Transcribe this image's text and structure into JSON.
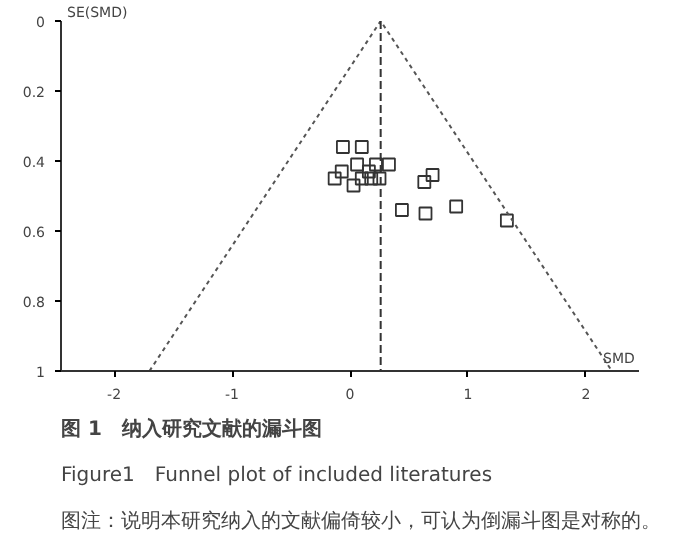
{
  "chart_data": {
    "type": "scatter",
    "title": "图 1　纳入研究文献的漏斗图",
    "subtitle": "Figure1　Funnel plot of included literatures",
    "annotations": [
      "图注：说明本研究纳入的文献偏倚较小，可认为倒漏斗图是对称的。"
    ],
    "xlabel": "SMD",
    "ylabel": "SE(SMD)",
    "series": [
      {
        "color": "#333333",
        "marker": "square",
        "x": [
          -0.06,
          0.1,
          0.06,
          0.22,
          0.33,
          -0.07,
          0.16,
          -0.13,
          0.1,
          0.18,
          0.25,
          0.03,
          0.7,
          0.63,
          0.44,
          0.64,
          0.9,
          1.33
        ],
        "values": [
          0.36,
          0.36,
          0.41,
          0.41,
          0.41,
          0.43,
          0.43,
          0.45,
          0.45,
          0.45,
          0.45,
          0.47,
          0.44,
          0.46,
          0.54,
          0.55,
          0.53,
          0.57
        ]
      },
      {
        "type": "line",
        "color": "#555555",
        "line_style": "dotted",
        "x": [
          -1.7,
          0.26,
          2.22
        ],
        "values": [
          1,
          0,
          1
        ]
      }
    ],
    "ref_lines": [
      {
        "axis": "x",
        "value": 0.26,
        "label": null,
        "color": "#333333",
        "line_style": "dashed"
      }
    ],
    "xlim": [
      -2.45,
      2.45
    ],
    "ylim": [
      1,
      0
    ],
    "xticks": [
      -2,
      -1,
      0,
      1,
      2
    ],
    "yticks": [
      0,
      0.2,
      0.4,
      0.6,
      0.8,
      1
    ],
    "grid": false
  }
}
